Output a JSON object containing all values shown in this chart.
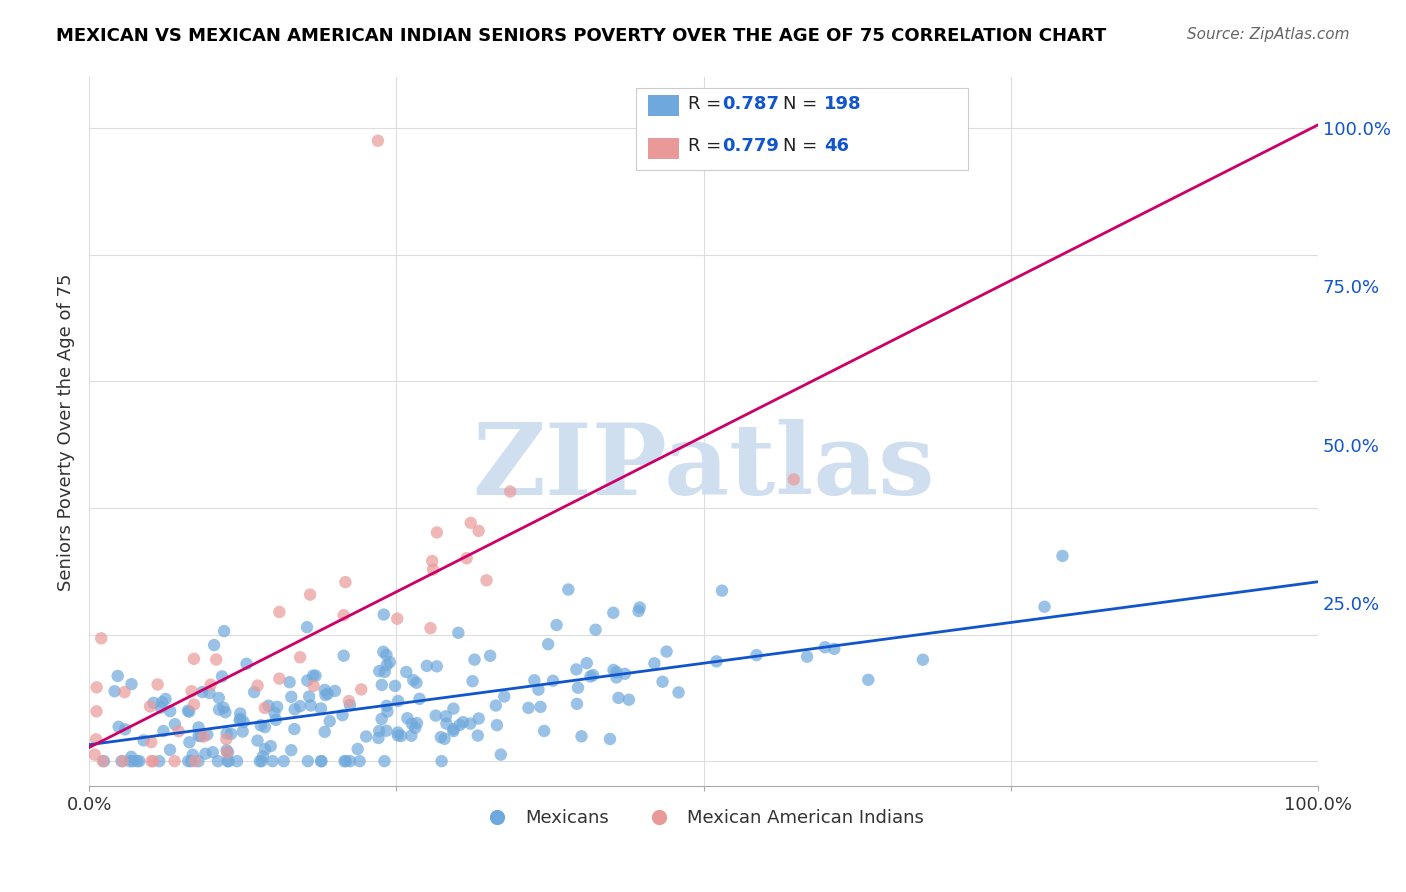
{
  "title": "MEXICAN VS MEXICAN AMERICAN INDIAN SENIORS POVERTY OVER THE AGE OF 75 CORRELATION CHART",
  "source": "Source: ZipAtlas.com",
  "ylabel": "Seniors Poverty Over the Age of 75",
  "xlabel_ticks": [
    "0.0%",
    "100.0%"
  ],
  "ylabel_ticks": [
    "100.0%",
    "75.0%",
    "50.0%",
    "25.0%"
  ],
  "blue_R": 0.787,
  "blue_N": 198,
  "pink_R": 0.779,
  "pink_N": 46,
  "blue_color": "#6fa8dc",
  "pink_color": "#ea9999",
  "trendline_blue": "#1155cc",
  "trendline_pink": "#cc0066",
  "watermark": "ZIPatlas",
  "watermark_color": "#d0dff0",
  "background_color": "#ffffff",
  "grid_color": "#dddddd",
  "legend_label_blue": "Mexicans",
  "legend_label_pink": "Mexican American Indians",
  "title_color": "#000000",
  "source_color": "#666666",
  "tick_label_color_x": "#000000",
  "tick_label_color_y": "#1155cc",
  "blue_seed": 42,
  "pink_seed": 7
}
